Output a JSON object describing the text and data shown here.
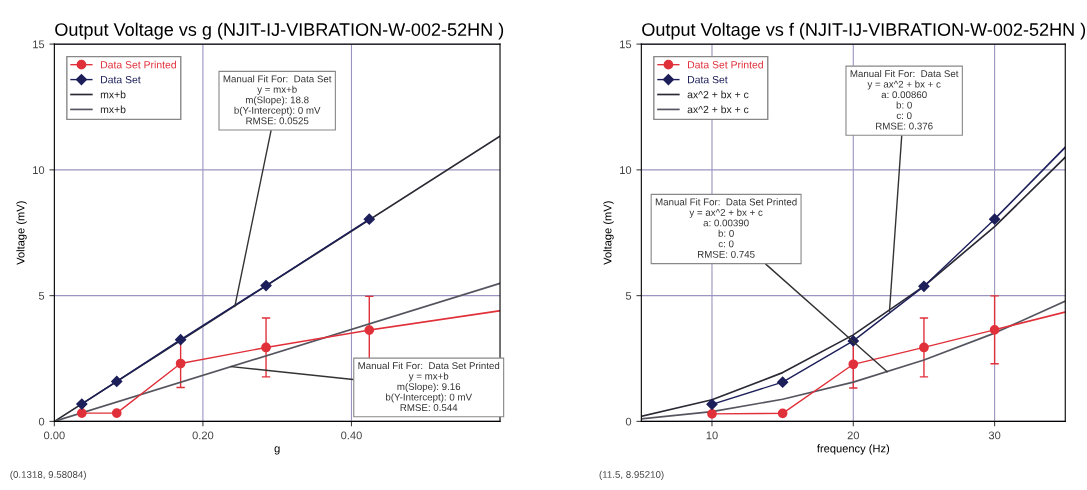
{
  "chart_data": [
    {
      "type": "line",
      "title": "Output Voltage vs g (NJIT-IJ-VIBRATION-W-002-52HN )",
      "xlabel": "g",
      "ylabel": "Voltage (mV)",
      "xlim": [
        0,
        0.6
      ],
      "ylim": [
        0,
        15
      ],
      "xticks": [
        {
          "value": 0,
          "label": "0.00"
        },
        {
          "value": 0.2,
          "label": "0.20"
        },
        {
          "value": 0.4,
          "label": "0.40"
        }
      ],
      "yticks": [
        0,
        5,
        10,
        15
      ],
      "grid": true,
      "legend": "top left",
      "series": [
        {
          "name": "Data Set Printed",
          "color": "#e0303a",
          "marker": "circle",
          "x": [
            0.037,
            0.084,
            0.17,
            0.285,
            0.424
          ],
          "values": [
            0.33,
            0.33,
            2.3,
            2.94,
            3.63
          ],
          "errors": [
            null,
            null,
            0.95,
            1.17,
            1.34
          ]
        },
        {
          "name": "Data Set",
          "color": "#1c1f5a",
          "marker": "diamond",
          "x": [
            0.037,
            0.084,
            0.17,
            0.285,
            0.424
          ],
          "values": [
            0.69,
            1.59,
            3.25,
            5.4,
            8.04
          ]
        },
        {
          "name": "mx+b",
          "color": "#2a2a35",
          "marker": "none",
          "x": [
            0,
            0.6
          ],
          "values": [
            0,
            11.34
          ]
        },
        {
          "name": "mx+b",
          "color": "#55555f",
          "marker": "none",
          "x": [
            0,
            0.6
          ],
          "values": [
            0,
            5.49
          ]
        },
        {
          "color": "#e0303a",
          "marker": "none",
          "x": [
            0.424,
            0.6
          ],
          "values": [
            3.63,
            4.4
          ]
        }
      ],
      "annotations": [
        {
          "text": "Manual Fit For:  Data Set\ny = mx+b\nm(Slope): 18.8\nb(Y-Intercept): 0 mV\nRMSE: 0.0525",
          "x": 0.243,
          "y": 4.57
        },
        {
          "text": "Manual Fit For:  Data Set Printed\ny = mx+b\nm(Slope): 9.16\nb(Y-Intercept): 0 mV\nRMSE: 0.544",
          "x": 0.238,
          "y": 2.18
        },
        "(0.1318, 9.58084)"
      ]
    },
    {
      "type": "line",
      "title": "Output Voltage vs f (NJIT-IJ-VIBRATION-W-002-52HN )",
      "xlabel": "frequency (Hz)",
      "ylabel": "Voltage (mV)",
      "xlim": [
        5,
        35
      ],
      "ylim": [
        0,
        15
      ],
      "xticks": [
        10,
        20,
        30
      ],
      "yticks": [
        0,
        5,
        10,
        15
      ],
      "grid": true,
      "legend": "top left",
      "series": [
        {
          "name": "Data Set Printed",
          "color": "#e0303a",
          "marker": "circle",
          "x": [
            10,
            15,
            20,
            25,
            30
          ],
          "values": [
            0.3,
            0.32,
            2.27,
            2.94,
            3.64
          ],
          "errors": [
            null,
            null,
            0.94,
            1.17,
            1.35
          ]
        },
        {
          "name": "Data Set",
          "color": "#1c1f5a",
          "marker": "diamond",
          "x": [
            10,
            15,
            20,
            25,
            30
          ],
          "values": [
            0.68,
            1.56,
            3.2,
            5.37,
            8.04
          ]
        },
        {
          "name": "ax^2 + bx + c",
          "color": "#2a2a35",
          "marker": "none",
          "x": [
            5,
            10,
            15,
            20,
            25,
            30,
            35
          ],
          "values": [
            0.2,
            0.86,
            1.94,
            3.44,
            5.38,
            7.74,
            10.5
          ]
        },
        {
          "name": "ax^2 + bx + c",
          "color": "#55555f",
          "marker": "none",
          "x": [
            5,
            10,
            15,
            20,
            25,
            30,
            35
          ],
          "values": [
            0.1,
            0.39,
            0.88,
            1.56,
            2.44,
            3.51,
            4.78
          ]
        },
        {
          "color": "#1c1f5a",
          "marker": "none",
          "x": [
            30,
            35
          ],
          "values": [
            8.04,
            10.9
          ]
        },
        {
          "color": "#e0303a",
          "marker": "none",
          "x": [
            30,
            35
          ],
          "values": [
            3.64,
            4.35
          ]
        }
      ],
      "annotations": [
        {
          "text": "Manual Fit For:  Data Set\ny = ax^2 + bx + c\na: 0.00860\nb: 0\nc: 0\nRMSE: 0.376",
          "x": 22.56,
          "y": 4.38
        },
        {
          "text": "Manual Fit For:  Data Set Printed\ny = ax^2 + bx + c\na: 0.00390\nb: 0\nc: 0\nRMSE: 0.745",
          "x": 22.4,
          "y": 1.97
        },
        "(11.5, 8.95210)"
      ]
    }
  ]
}
